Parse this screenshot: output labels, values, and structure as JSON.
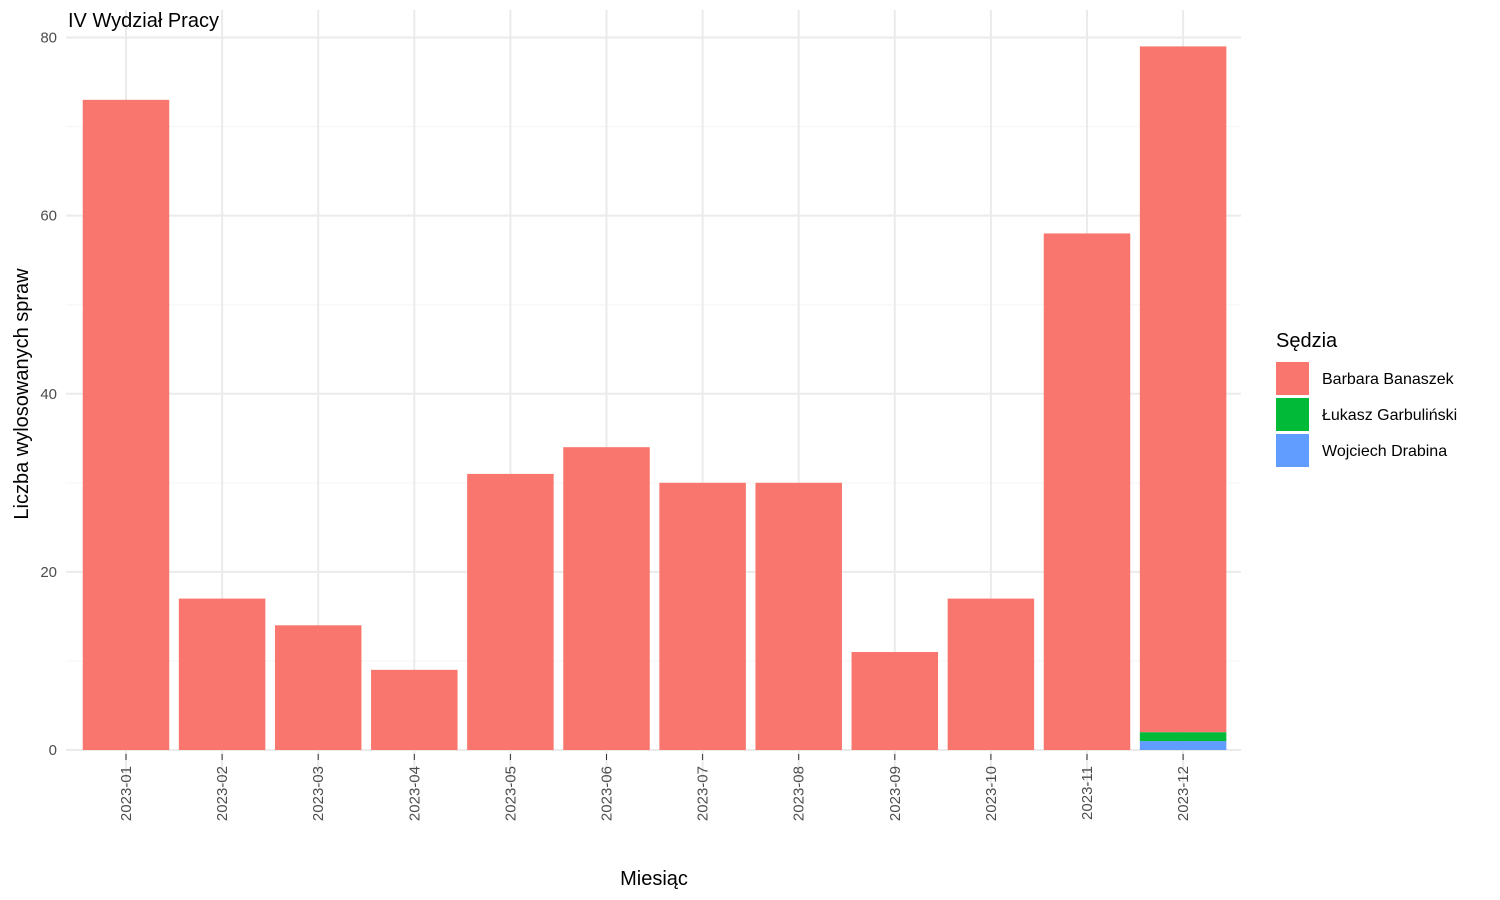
{
  "chart_data": {
    "type": "bar",
    "stacked": true,
    "title": "IV Wydział Pracy",
    "xlabel": "Miesiąc",
    "ylabel": "Liczba wylosowanych spraw",
    "ylim": [
      0,
      80
    ],
    "yticks": [
      0,
      20,
      40,
      60,
      80
    ],
    "grid": true,
    "legend": {
      "title": "Sędzia",
      "position": "right"
    },
    "categories": [
      "2023-01",
      "2023-02",
      "2023-03",
      "2023-04",
      "2023-05",
      "2023-06",
      "2023-07",
      "2023-08",
      "2023-09",
      "2023-10",
      "2023-11",
      "2023-12"
    ],
    "series": [
      {
        "name": "Wojciech Drabina",
        "color": "#619CFF",
        "values": [
          0,
          0,
          0,
          0,
          0,
          0,
          0,
          0,
          0,
          0,
          0,
          1
        ]
      },
      {
        "name": "Łukasz Garbuliński",
        "color": "#00BA38",
        "values": [
          0,
          0,
          0,
          0,
          0,
          0,
          0,
          0,
          0,
          0,
          0,
          1
        ]
      },
      {
        "name": "Barbara Banaszek",
        "color": "#F8766D",
        "values": [
          73,
          17,
          14,
          9,
          31,
          34,
          30,
          30,
          11,
          17,
          58,
          77
        ]
      }
    ],
    "legend_order": [
      "Barbara Banaszek",
      "Łukasz Garbuliński",
      "Wojciech Drabina"
    ]
  }
}
